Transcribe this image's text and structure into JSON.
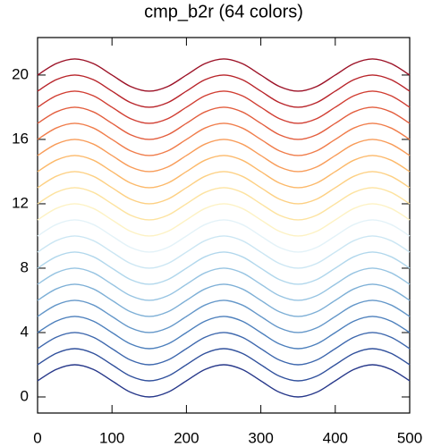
{
  "chart_data": {
    "type": "line",
    "title": "cmp_b2r (64 colors)",
    "x": [
      0,
      25,
      50,
      75,
      100,
      125,
      150,
      175,
      200,
      225,
      250,
      275,
      300,
      325,
      350,
      375,
      400,
      425,
      450,
      475,
      500
    ],
    "series": [
      {
        "color": "#27388a",
        "values": [
          1,
          1.71,
          2,
          1.71,
          1,
          0.29,
          0,
          0.29,
          1,
          1.71,
          2,
          1.71,
          1,
          0.29,
          0,
          0.29,
          1,
          1.71,
          2,
          1.71,
          1
        ]
      },
      {
        "color": "#30509c",
        "values": [
          2,
          2.71,
          3,
          2.71,
          2,
          1.29,
          1,
          1.29,
          2,
          2.71,
          3,
          2.71,
          2,
          1.29,
          1,
          1.29,
          2,
          2.71,
          3,
          2.71,
          2
        ]
      },
      {
        "color": "#3d67ad",
        "values": [
          3,
          3.71,
          4,
          3.71,
          3,
          2.29,
          2,
          2.29,
          3,
          3.71,
          4,
          3.71,
          3,
          2.29,
          2,
          2.29,
          3,
          3.71,
          4,
          3.71,
          3
        ]
      },
      {
        "color": "#4c7fbc",
        "values": [
          4,
          4.71,
          5,
          4.71,
          4,
          3.29,
          3,
          3.29,
          4,
          4.71,
          5,
          4.71,
          4,
          3.29,
          3,
          3.29,
          4,
          4.71,
          5,
          4.71,
          4
        ]
      },
      {
        "color": "#6497c9",
        "values": [
          5,
          5.71,
          6,
          5.71,
          5,
          4.29,
          4,
          4.29,
          5,
          5.71,
          6,
          5.71,
          5,
          4.29,
          4,
          4.29,
          5,
          5.71,
          6,
          5.71,
          5
        ]
      },
      {
        "color": "#7dafd6",
        "values": [
          6,
          6.71,
          7,
          6.71,
          6,
          5.29,
          5,
          5.29,
          6,
          6.71,
          7,
          6.71,
          6,
          5.29,
          5,
          5.29,
          6,
          6.71,
          7,
          6.71,
          6
        ]
      },
      {
        "color": "#97c4e2",
        "values": [
          7,
          7.71,
          8,
          7.71,
          7,
          6.29,
          6,
          6.29,
          7,
          7.71,
          8,
          7.71,
          7,
          6.29,
          6,
          6.29,
          7,
          7.71,
          8,
          7.71,
          7
        ]
      },
      {
        "color": "#b1d7ec",
        "values": [
          8,
          8.71,
          9,
          8.71,
          8,
          7.29,
          7,
          7.29,
          8,
          8.71,
          9,
          8.71,
          8,
          7.29,
          7,
          7.29,
          8,
          8.71,
          9,
          8.71,
          8
        ]
      },
      {
        "color": "#cbe6f3",
        "values": [
          9,
          9.71,
          10,
          9.71,
          9,
          8.29,
          8,
          8.29,
          9,
          9.71,
          10,
          9.71,
          9,
          8.29,
          8,
          8.29,
          9,
          9.71,
          10,
          9.71,
          9
        ]
      },
      {
        "color": "#e3f2f8",
        "values": [
          10,
          10.71,
          11,
          10.71,
          10,
          9.29,
          9,
          9.29,
          10,
          10.71,
          11,
          10.71,
          10,
          9.29,
          9,
          9.29,
          10,
          10.71,
          11,
          10.71,
          10
        ]
      },
      {
        "color": "#fdf2c4",
        "values": [
          11,
          11.71,
          12,
          11.71,
          11,
          10.29,
          10,
          10.29,
          11,
          11.71,
          12,
          11.71,
          11,
          10.29,
          10,
          10.29,
          11,
          11.71,
          12,
          11.71,
          11
        ]
      },
      {
        "color": "#fde3a0",
        "values": [
          12,
          12.71,
          13,
          12.71,
          12,
          11.29,
          11,
          11.29,
          12,
          12.71,
          13,
          12.71,
          12,
          11.29,
          11,
          11.29,
          12,
          12.71,
          13,
          12.71,
          12
        ]
      },
      {
        "color": "#fdd083",
        "values": [
          13,
          13.71,
          14,
          13.71,
          13,
          12.29,
          12,
          12.29,
          13,
          13.71,
          14,
          13.71,
          13,
          12.29,
          12,
          12.29,
          13,
          13.71,
          14,
          13.71,
          13
        ]
      },
      {
        "color": "#fcb96a",
        "values": [
          14,
          14.71,
          15,
          14.71,
          14,
          13.29,
          13,
          13.29,
          14,
          14.71,
          15,
          14.71,
          14,
          13.29,
          13,
          13.29,
          14,
          14.71,
          15,
          14.71,
          14
        ]
      },
      {
        "color": "#f89c59",
        "values": [
          15,
          15.71,
          16,
          15.71,
          15,
          14.29,
          14,
          14.29,
          15,
          15.71,
          16,
          15.71,
          15,
          14.29,
          14,
          14.29,
          15,
          15.71,
          16,
          15.71,
          15
        ]
      },
      {
        "color": "#f07d4b",
        "values": [
          16,
          16.71,
          17,
          16.71,
          16,
          15.29,
          15,
          15.29,
          16,
          16.71,
          17,
          16.71,
          16,
          15.29,
          15,
          15.29,
          16,
          16.71,
          17,
          16.71,
          16
        ]
      },
      {
        "color": "#e35e3e",
        "values": [
          17,
          17.71,
          18,
          17.71,
          17,
          16.29,
          16,
          16.29,
          17,
          17.71,
          18,
          17.71,
          17,
          16.29,
          16,
          16.29,
          17,
          17.71,
          18,
          17.71,
          17
        ]
      },
      {
        "color": "#d13e32",
        "values": [
          18,
          18.71,
          19,
          18.71,
          18,
          17.29,
          17,
          17.29,
          18,
          18.71,
          19,
          18.71,
          18,
          17.29,
          17,
          17.29,
          18,
          18.71,
          19,
          18.71,
          18
        ]
      },
      {
        "color": "#b8242a",
        "values": [
          19,
          19.71,
          20,
          19.71,
          19,
          18.29,
          18,
          18.29,
          19,
          19.71,
          20,
          19.71,
          19,
          18.29,
          18,
          18.29,
          19,
          19.71,
          20,
          19.71,
          19
        ]
      },
      {
        "color": "#9c1227",
        "values": [
          20,
          20.71,
          21,
          20.71,
          20,
          19.29,
          19,
          19.29,
          20,
          20.71,
          21,
          20.71,
          20,
          19.29,
          19,
          19.29,
          20,
          20.71,
          21,
          20.71,
          20
        ]
      }
    ],
    "xlim": [
      0,
      500
    ],
    "xticks": [
      0,
      100,
      200,
      300,
      400,
      500
    ],
    "ylim": [
      -1,
      22.33
    ],
    "yticks": [
      0,
      4,
      8,
      12,
      16,
      20
    ]
  }
}
